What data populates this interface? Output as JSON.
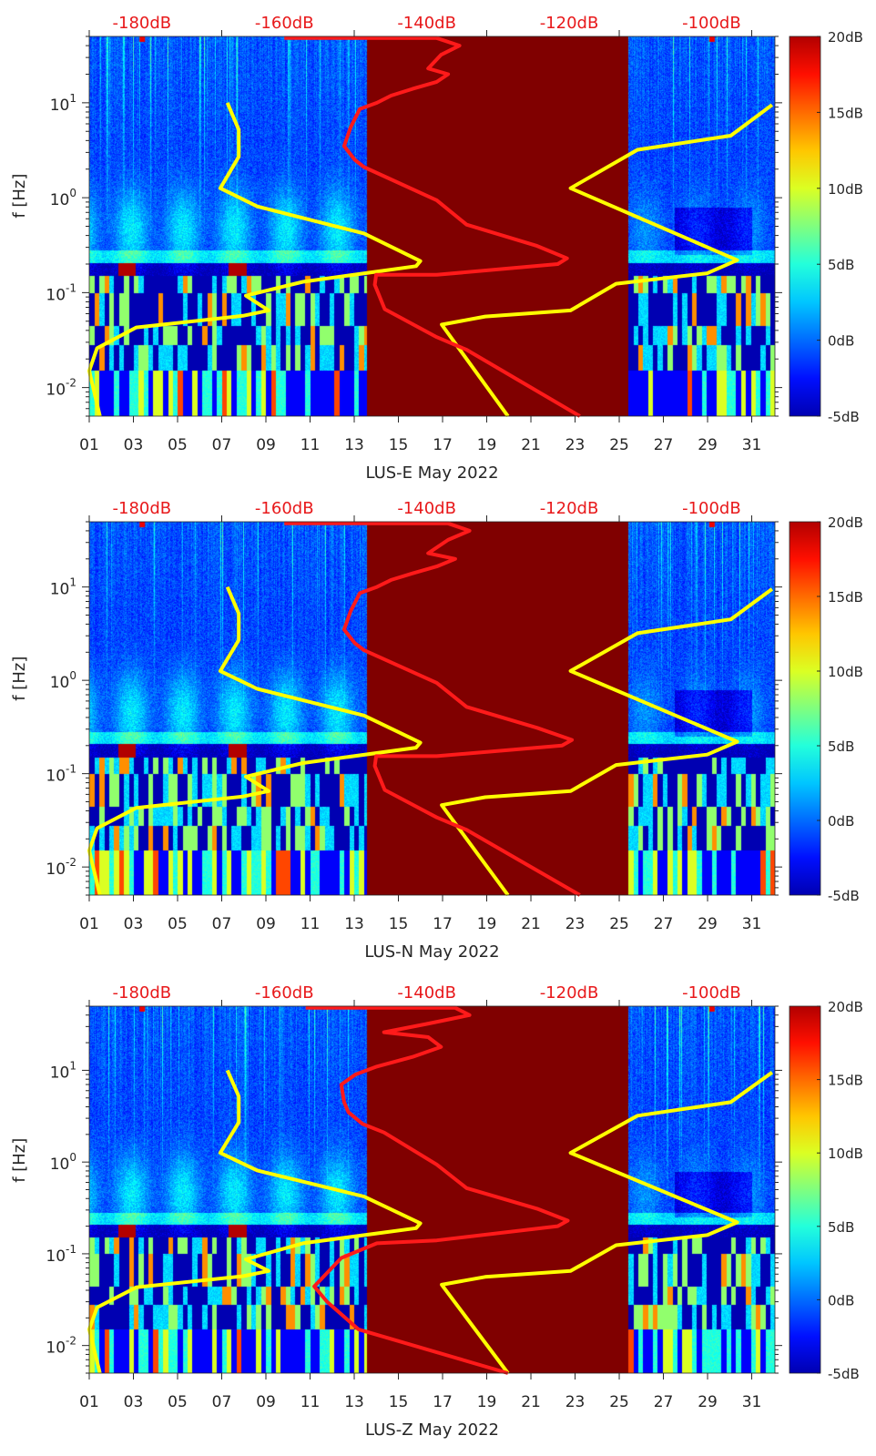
{
  "chart_data": [
    {
      "type": "heatmap",
      "title": "LUS-E May 2022",
      "xlabel": "LUS-E May 2022",
      "ylabel": "f [Hz]",
      "xlim_days": [
        1,
        32.05
      ],
      "xtick_labels": [
        "01",
        "03",
        "05",
        "07",
        "09",
        "11",
        "13",
        "15",
        "17",
        "19",
        "21",
        "23",
        "25",
        "27",
        "29",
        "31"
      ],
      "ylim_hz": [
        0.005,
        50
      ],
      "ytick_labels": [
        {
          "base": "10",
          "exp": "1",
          "value": 10
        },
        {
          "base": "10",
          "exp": "0",
          "value": 1
        },
        {
          "base": "10",
          "exp": "-1",
          "value": 0.1
        },
        {
          "base": "10",
          "exp": "-2",
          "value": 0.01
        }
      ],
      "top_axis": {
        "range_db": [
          -187.4,
          -91.1
        ],
        "tick_labels": [
          {
            "label": "-180dB",
            "value": -180
          },
          {
            "label": "-160dB",
            "value": -160
          },
          {
            "label": "-140dB",
            "value": -140
          },
          {
            "label": "-120dB",
            "value": -120
          },
          {
            "label": "-100dB",
            "value": -100
          }
        ]
      },
      "colorbar": {
        "clim_db": [
          -5,
          20
        ],
        "colormap": "jet",
        "tick_labels": [
          {
            "label": "20dB",
            "value": 20
          },
          {
            "label": "15dB",
            "value": 15
          },
          {
            "label": "10dB",
            "value": 10
          },
          {
            "label": "5dB",
            "value": 5
          },
          {
            "label": "0dB",
            "value": 0
          },
          {
            "label": "-5dB",
            "value": -5
          }
        ]
      },
      "data_gap_days": [
        13.55,
        25.4
      ],
      "gap_color": "#800000",
      "series": [
        {
          "name": "psd-yellow-left",
          "color": "#ffff00",
          "points_db_hz": [
            [
              -168.0,
              10
            ],
            [
              -166.4,
              5.2
            ],
            [
              -166.4,
              2.7
            ],
            [
              -169.0,
              1.26
            ],
            [
              -163.8,
              0.81
            ],
            [
              -148.8,
              0.42
            ],
            [
              -140.9,
              0.215
            ],
            [
              -141.5,
              0.19
            ],
            [
              -157.4,
              0.13
            ],
            [
              -165.4,
              0.093
            ],
            [
              -162.2,
              0.065
            ],
            [
              -165.8,
              0.057
            ],
            [
              -180.8,
              0.043
            ],
            [
              -186.3,
              0.026
            ],
            [
              -187.4,
              0.015
            ],
            [
              -185.9,
              0.005
            ]
          ]
        },
        {
          "name": "psd-yellow-right",
          "color": "#ffff00",
          "points_db_hz": [
            [
              -91.5,
              9.5
            ],
            [
              -97.3,
              4.5
            ],
            [
              -110.4,
              3.2
            ],
            [
              -119.8,
              1.26
            ],
            [
              -96.4,
              0.22
            ],
            [
              -100.6,
              0.16
            ],
            [
              -113.4,
              0.124
            ],
            [
              -119.8,
              0.065
            ],
            [
              -131.8,
              0.056
            ],
            [
              -137.9,
              0.046
            ],
            [
              -128.6,
              0.005
            ]
          ]
        },
        {
          "name": "psd-red",
          "color": "#ff1a1a",
          "points_db_hz": [
            [
              -160,
              48
            ],
            [
              -138.6,
              48
            ],
            [
              -135.4,
              40
            ],
            [
              -138,
              32
            ],
            [
              -139.8,
              23
            ],
            [
              -137,
              20
            ],
            [
              -138.6,
              16.6
            ],
            [
              -142,
              14
            ],
            [
              -145,
              11.9
            ],
            [
              -147,
              10
            ],
            [
              -149.4,
              8.6
            ],
            [
              -150.7,
              5.5
            ],
            [
              -151.6,
              3.5
            ],
            [
              -150.1,
              2.5
            ],
            [
              -148.8,
              2.1
            ],
            [
              -138.6,
              0.94
            ],
            [
              -134.4,
              0.52
            ],
            [
              -124.5,
              0.31
            ],
            [
              -120.3,
              0.23
            ],
            [
              -121.6,
              0.2
            ],
            [
              -138.6,
              0.154
            ],
            [
              -147.1,
              0.154
            ],
            [
              -147.3,
              0.121
            ],
            [
              -145.9,
              0.067
            ],
            [
              -138.6,
              0.034
            ],
            [
              -134.4,
              0.025
            ],
            [
              -118.5,
              0.005
            ]
          ]
        }
      ]
    },
    {
      "type": "heatmap",
      "title": "LUS-N May 2022",
      "xlabel": "LUS-N May 2022",
      "ylabel": "f [Hz]",
      "xlim_days": [
        1,
        32.05
      ],
      "xtick_labels": [
        "01",
        "03",
        "05",
        "07",
        "09",
        "11",
        "13",
        "15",
        "17",
        "19",
        "21",
        "23",
        "25",
        "27",
        "29",
        "31"
      ],
      "ylim_hz": [
        0.005,
        50
      ],
      "ytick_labels": [
        {
          "base": "10",
          "exp": "1",
          "value": 10
        },
        {
          "base": "10",
          "exp": "0",
          "value": 1
        },
        {
          "base": "10",
          "exp": "-1",
          "value": 0.1
        },
        {
          "base": "10",
          "exp": "-2",
          "value": 0.01
        }
      ],
      "top_axis": {
        "range_db": [
          -187.4,
          -91.1
        ],
        "tick_labels": [
          {
            "label": "-180dB",
            "value": -180
          },
          {
            "label": "-160dB",
            "value": -160
          },
          {
            "label": "-140dB",
            "value": -140
          },
          {
            "label": "-120dB",
            "value": -120
          },
          {
            "label": "-100dB",
            "value": -100
          }
        ]
      },
      "colorbar": {
        "clim_db": [
          -5,
          20
        ],
        "colormap": "jet",
        "tick_labels": [
          {
            "label": "20dB",
            "value": 20
          },
          {
            "label": "15dB",
            "value": 15
          },
          {
            "label": "10dB",
            "value": 10
          },
          {
            "label": "5dB",
            "value": 5
          },
          {
            "label": "0dB",
            "value": 0
          },
          {
            "label": "-5dB",
            "value": -5
          }
        ]
      },
      "data_gap_days": [
        13.55,
        25.4
      ],
      "gap_color": "#800000",
      "series": [
        {
          "name": "psd-yellow-left",
          "color": "#ffff00",
          "points_db_hz": [
            [
              -168.0,
              10
            ],
            [
              -166.4,
              5.2
            ],
            [
              -166.4,
              2.7
            ],
            [
              -169.0,
              1.26
            ],
            [
              -163.8,
              0.81
            ],
            [
              -148.8,
              0.42
            ],
            [
              -140.9,
              0.215
            ],
            [
              -141.5,
              0.19
            ],
            [
              -157.4,
              0.13
            ],
            [
              -165.4,
              0.093
            ],
            [
              -162.2,
              0.065
            ],
            [
              -165.8,
              0.057
            ],
            [
              -180.8,
              0.043
            ],
            [
              -186.3,
              0.026
            ],
            [
              -187.4,
              0.015
            ],
            [
              -185.9,
              0.005
            ]
          ]
        },
        {
          "name": "psd-yellow-right",
          "color": "#ffff00",
          "points_db_hz": [
            [
              -91.5,
              9.5
            ],
            [
              -97.3,
              4.5
            ],
            [
              -110.4,
              3.2
            ],
            [
              -119.8,
              1.26
            ],
            [
              -96.4,
              0.22
            ],
            [
              -100.6,
              0.16
            ],
            [
              -113.4,
              0.124
            ],
            [
              -119.8,
              0.065
            ],
            [
              -131.8,
              0.056
            ],
            [
              -137.9,
              0.046
            ],
            [
              -128.6,
              0.005
            ]
          ]
        },
        {
          "name": "psd-red",
          "color": "#ff1a1a",
          "points_db_hz": [
            [
              -160,
              48
            ],
            [
              -137,
              48
            ],
            [
              -134,
              40
            ],
            [
              -137,
              32
            ],
            [
              -139.8,
              23
            ],
            [
              -136,
              20
            ],
            [
              -138.6,
              16.6
            ],
            [
              -142,
              14
            ],
            [
              -145,
              11.9
            ],
            [
              -147,
              10
            ],
            [
              -149.4,
              8.6
            ],
            [
              -150.7,
              5.5
            ],
            [
              -151.6,
              3.5
            ],
            [
              -150.1,
              2.5
            ],
            [
              -148.8,
              2.1
            ],
            [
              -138.6,
              0.94
            ],
            [
              -134.4,
              0.52
            ],
            [
              -124.5,
              0.31
            ],
            [
              -119.6,
              0.23
            ],
            [
              -121,
              0.2
            ],
            [
              -138.6,
              0.154
            ],
            [
              -147.1,
              0.154
            ],
            [
              -147.3,
              0.121
            ],
            [
              -145.9,
              0.067
            ],
            [
              -138.6,
              0.034
            ],
            [
              -134.4,
              0.025
            ],
            [
              -118.5,
              0.005
            ]
          ]
        }
      ]
    },
    {
      "type": "heatmap",
      "title": "LUS-Z May 2022",
      "xlabel": "LUS-Z May 2022",
      "ylabel": "f [Hz]",
      "xlim_days": [
        1,
        32.05
      ],
      "xtick_labels": [
        "01",
        "03",
        "05",
        "07",
        "09",
        "11",
        "13",
        "15",
        "17",
        "19",
        "21",
        "23",
        "25",
        "27",
        "29",
        "31"
      ],
      "ylim_hz": [
        0.005,
        50
      ],
      "ytick_labels": [
        {
          "base": "10",
          "exp": "1",
          "value": 10
        },
        {
          "base": "10",
          "exp": "0",
          "value": 1
        },
        {
          "base": "10",
          "exp": "-1",
          "value": 0.1
        },
        {
          "base": "10",
          "exp": "-2",
          "value": 0.01
        }
      ],
      "top_axis": {
        "range_db": [
          -187.4,
          -91.1
        ],
        "tick_labels": [
          {
            "label": "-180dB",
            "value": -180
          },
          {
            "label": "-160dB",
            "value": -160
          },
          {
            "label": "-140dB",
            "value": -140
          },
          {
            "label": "-120dB",
            "value": -120
          },
          {
            "label": "-100dB",
            "value": -100
          }
        ]
      },
      "colorbar": {
        "clim_db": [
          -5,
          20
        ],
        "colormap": "jet",
        "tick_labels": [
          {
            "label": "20dB",
            "value": 20
          },
          {
            "label": "15dB",
            "value": 15
          },
          {
            "label": "10dB",
            "value": 10
          },
          {
            "label": "5dB",
            "value": 5
          },
          {
            "label": "0dB",
            "value": 0
          },
          {
            "label": "-5dB",
            "value": -5
          }
        ]
      },
      "data_gap_days": [
        13.55,
        25.4
      ],
      "gap_color": "#800000",
      "series": [
        {
          "name": "psd-yellow-left",
          "color": "#ffff00",
          "points_db_hz": [
            [
              -168.0,
              10
            ],
            [
              -166.4,
              5.2
            ],
            [
              -166.4,
              2.7
            ],
            [
              -169.0,
              1.26
            ],
            [
              -163.8,
              0.81
            ],
            [
              -148.8,
              0.42
            ],
            [
              -140.9,
              0.215
            ],
            [
              -141.5,
              0.19
            ],
            [
              -157.4,
              0.13
            ],
            [
              -165.4,
              0.087
            ],
            [
              -162.2,
              0.065
            ],
            [
              -165.8,
              0.057
            ],
            [
              -180.8,
              0.043
            ],
            [
              -186.3,
              0.026
            ],
            [
              -187.4,
              0.015
            ],
            [
              -185.9,
              0.005
            ]
          ]
        },
        {
          "name": "psd-yellow-right",
          "color": "#ffff00",
          "points_db_hz": [
            [
              -91.5,
              9.5
            ],
            [
              -97.3,
              4.5
            ],
            [
              -110.4,
              3.2
            ],
            [
              -119.8,
              1.26
            ],
            [
              -96.4,
              0.22
            ],
            [
              -100.6,
              0.16
            ],
            [
              -113.4,
              0.124
            ],
            [
              -119.8,
              0.065
            ],
            [
              -131.8,
              0.056
            ],
            [
              -137.9,
              0.046
            ],
            [
              -128.6,
              0.005
            ]
          ]
        },
        {
          "name": "psd-red",
          "color": "#ff1a1a",
          "points_db_hz": [
            [
              -157,
              48
            ],
            [
              -136,
              48
            ],
            [
              -134,
              40
            ],
            [
              -140,
              32
            ],
            [
              -146,
              26
            ],
            [
              -139.8,
              23
            ],
            [
              -138,
              18
            ],
            [
              -142,
              14
            ],
            [
              -147,
              11
            ],
            [
              -150,
              9
            ],
            [
              -152,
              7
            ],
            [
              -151.6,
              4.5
            ],
            [
              -151,
              3.5
            ],
            [
              -149,
              2.6
            ],
            [
              -146,
              2.1
            ],
            [
              -138.6,
              0.94
            ],
            [
              -134.4,
              0.52
            ],
            [
              -124.5,
              0.31
            ],
            [
              -120.2,
              0.23
            ],
            [
              -121.6,
              0.2
            ],
            [
              -138.6,
              0.14
            ],
            [
              -147,
              0.13
            ],
            [
              -152,
              0.09
            ],
            [
              -155.8,
              0.044
            ],
            [
              -154,
              0.03
            ],
            [
              -149.6,
              0.015
            ],
            [
              -128.6,
              0.005
            ]
          ]
        }
      ]
    }
  ]
}
